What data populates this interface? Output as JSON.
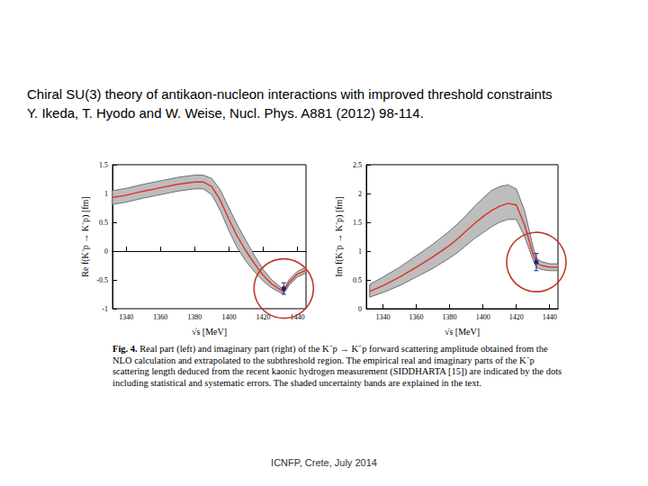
{
  "header": {
    "title": "Chiral SU(3) theory of antikaon-nucleon interactions with improved threshold constraints",
    "citation": "Y. Ikeda, T. Hyodo and W. Weise, Nucl. Phys. A881 (2012) 98-114."
  },
  "chart_data": [
    {
      "type": "line",
      "x_label": "√s [MeV]",
      "y_label": "Re f(K⁻p → K⁻p) [fm]",
      "x": [
        1332,
        1340,
        1350,
        1360,
        1370,
        1380,
        1385,
        1390,
        1395,
        1400,
        1405,
        1410,
        1415,
        1420,
        1425,
        1430,
        1432,
        1435,
        1440,
        1445
      ],
      "series": [
        {
          "color": "#e0302a",
          "values": [
            0.93,
            0.97,
            1.04,
            1.1,
            1.16,
            1.2,
            1.2,
            1.12,
            0.88,
            0.55,
            0.25,
            0.0,
            -0.22,
            -0.42,
            -0.57,
            -0.67,
            -0.7,
            -0.55,
            -0.4,
            -0.33
          ]
        }
      ],
      "band": {
        "color": "#bdbdbd",
        "lower": [
          0.81,
          0.85,
          0.92,
          0.98,
          1.04,
          1.08,
          1.08,
          0.98,
          0.7,
          0.35,
          0.05,
          -0.18,
          -0.36,
          -0.52,
          -0.64,
          -0.72,
          -0.74,
          -0.6,
          -0.45,
          -0.38
        ],
        "upper": [
          1.05,
          1.09,
          1.16,
          1.22,
          1.28,
          1.32,
          1.32,
          1.26,
          1.06,
          0.75,
          0.45,
          0.18,
          -0.08,
          -0.32,
          -0.5,
          -0.62,
          -0.66,
          -0.5,
          -0.35,
          -0.28
        ]
      },
      "points": [
        {
          "x": 1432,
          "y": -0.65,
          "error": 0.1,
          "color": "#1a237e"
        }
      ],
      "xlim": [
        1332,
        1445
      ],
      "xticks": [
        1340,
        1360,
        1380,
        1400,
        1420,
        1440
      ],
      "ylim": [
        -1,
        1.5
      ],
      "yticks": [
        -1,
        -0.5,
        0,
        0.5,
        1,
        1.5
      ],
      "grid": false
    },
    {
      "type": "line",
      "x_label": "√s [MeV]",
      "y_label": "Im f(K⁻p → K⁻p) [fm]",
      "x": [
        1332,
        1340,
        1350,
        1360,
        1370,
        1380,
        1385,
        1390,
        1395,
        1400,
        1405,
        1410,
        1415,
        1420,
        1425,
        1430,
        1432,
        1435,
        1440,
        1445
      ],
      "series": [
        {
          "color": "#e0302a",
          "values": [
            0.3,
            0.4,
            0.55,
            0.72,
            0.9,
            1.1,
            1.22,
            1.35,
            1.48,
            1.6,
            1.7,
            1.78,
            1.83,
            1.8,
            1.45,
            0.95,
            0.8,
            0.75,
            0.72,
            0.72
          ]
        }
      ],
      "band": {
        "color": "#bdbdbd",
        "lower": [
          0.2,
          0.28,
          0.4,
          0.55,
          0.7,
          0.88,
          0.98,
          1.1,
          1.22,
          1.32,
          1.42,
          1.5,
          1.55,
          1.55,
          1.25,
          0.85,
          0.72,
          0.68,
          0.66,
          0.66
        ],
        "upper": [
          0.42,
          0.55,
          0.72,
          0.92,
          1.12,
          1.35,
          1.48,
          1.62,
          1.78,
          1.92,
          2.05,
          2.12,
          2.15,
          2.08,
          1.7,
          1.08,
          0.88,
          0.82,
          0.78,
          0.78
        ]
      },
      "points": [
        {
          "x": 1432,
          "y": 0.81,
          "error": 0.15,
          "color": "#1a237e"
        }
      ],
      "xlim": [
        1330,
        1445
      ],
      "xticks": [
        1340,
        1360,
        1380,
        1400,
        1420,
        1440
      ],
      "ylim": [
        0,
        2.5
      ],
      "yticks": [
        0,
        0.5,
        1,
        1.5,
        2,
        2.5
      ],
      "grid": false
    }
  ],
  "caption": {
    "label": "Fig. 4.",
    "text": "Real part (left) and imaginary part (right) of the K⁻p → K⁻p forward scattering amplitude obtained from the NLO calculation and extrapolated to the subthreshold region. The empirical real and imaginary parts of the K⁻p scattering length deduced from the recent kaonic hydrogen measurement (SIDDHARTA [15]) are indicated by the dots including statistical and systematic errors. The shaded uncertainty bands are explained in the text."
  },
  "footer": "ICNFP, Crete, July 2014"
}
